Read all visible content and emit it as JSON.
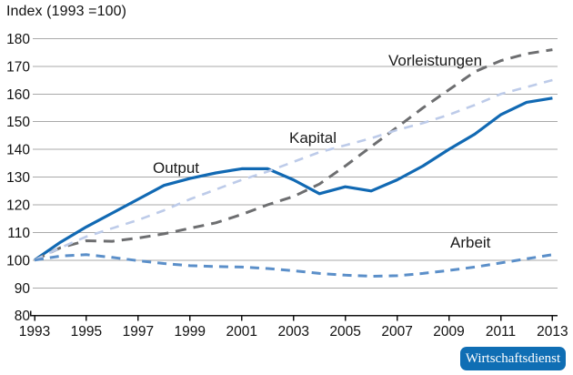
{
  "title": "Index (1993 =100)",
  "branding": {
    "label": "Wirtschaftsdienst",
    "bg_color": "#0f6eb4",
    "text_color": "#ffffff"
  },
  "chart_data": {
    "type": "line",
    "title": "Index (1993 =100)",
    "x": [
      1993,
      1994,
      1995,
      1996,
      1997,
      1998,
      1999,
      2000,
      2001,
      2002,
      2003,
      2004,
      2005,
      2006,
      2007,
      2008,
      2009,
      2010,
      2011,
      2012,
      2013
    ],
    "x_tick_labels": [
      "1993",
      "1995",
      "1997",
      "1999",
      "2001",
      "2003",
      "2005",
      "2007",
      "2009",
      "2011",
      "2013"
    ],
    "ylim": [
      80,
      180
    ],
    "y_ticks": [
      80,
      90,
      100,
      110,
      120,
      130,
      140,
      150,
      160,
      170,
      180
    ],
    "grid": true,
    "legend_position": "inline-labels",
    "series": [
      {
        "name": "Output",
        "style": "solid",
        "color": "#1169b3",
        "values": [
          100,
          106.5,
          112,
          117,
          122,
          127,
          129.5,
          131.5,
          133,
          133,
          129,
          124,
          126.5,
          125,
          129,
          134,
          140,
          145.5,
          152.5,
          157,
          158.5
        ]
      },
      {
        "name": "Vorleistungen",
        "style": "dashed",
        "color": "#6d6e70",
        "values": [
          100,
          104.5,
          107,
          106.8,
          108,
          109.5,
          111.5,
          113.5,
          116.5,
          120,
          123,
          127.5,
          134,
          141,
          148,
          155,
          161.5,
          168,
          172,
          174.5,
          176
        ]
      },
      {
        "name": "Kapital",
        "style": "dashed",
        "color": "#bdcbe9",
        "values": [
          100,
          104.5,
          108.5,
          111.5,
          114.5,
          118,
          122,
          125.5,
          129,
          132,
          135.5,
          139,
          141.5,
          144,
          147,
          149.5,
          152.5,
          156,
          160,
          162.5,
          165
        ]
      },
      {
        "name": "Arbeit",
        "style": "dashed",
        "color": "#5b8fc9",
        "values": [
          100,
          101.5,
          102,
          101,
          99.8,
          98.8,
          98,
          97.7,
          97.5,
          97,
          96.2,
          95.2,
          94.6,
          94.2,
          94.4,
          95.2,
          96.3,
          97.5,
          99,
          100.5,
          102
        ]
      }
    ],
    "axis_color": "#111111",
    "grid_color": "#a9a9a9"
  }
}
